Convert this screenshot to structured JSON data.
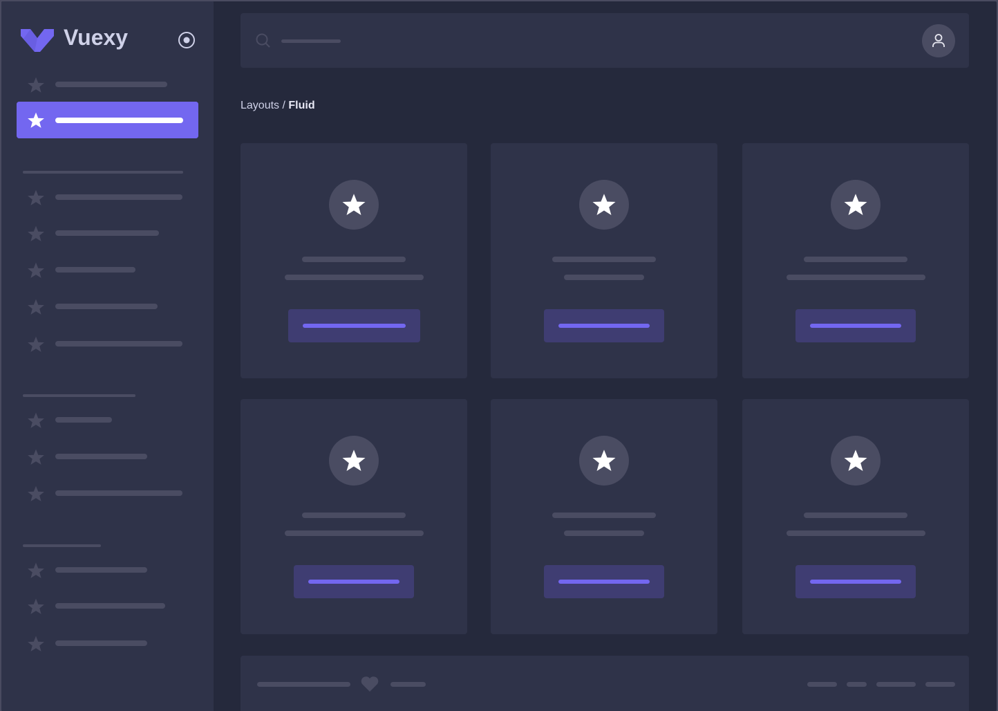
{
  "app": {
    "name": "Vuexy",
    "brand_color": "#7367f0"
  },
  "breadcrumb": {
    "parent": "Layouts",
    "separator": "/",
    "current": "Fluid"
  },
  "icons": {
    "logo": "vuexy-logo-icon",
    "toggle": "radio-circle-icon",
    "search": "search-icon",
    "user": "user-icon",
    "nav": "star-icon",
    "footer": "heart-icon"
  },
  "colors": {
    "sidebar": "#2f3349",
    "background": "#25293c",
    "placeholder": "#4a4c62",
    "primary": "#7367f0"
  }
}
